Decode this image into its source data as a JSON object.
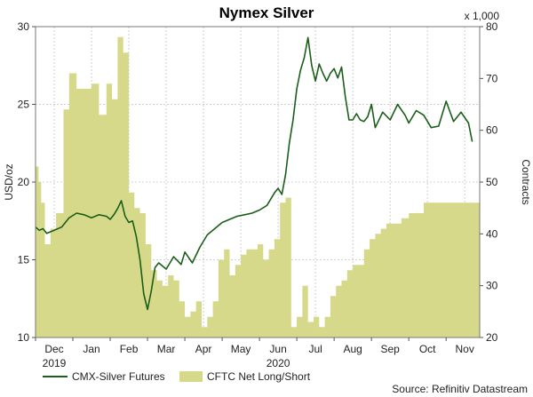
{
  "chart_data": {
    "type": "area+line",
    "title": "Nymex Silver",
    "ylabel_left": "USD/oz",
    "ylabel_right": "Contracts",
    "right_multiplier": "x 1,000",
    "ylim_left": [
      10,
      30
    ],
    "ylim_right": [
      20,
      80
    ],
    "yticks_left": [
      10,
      15,
      20,
      25,
      30
    ],
    "yticks_right": [
      20,
      30,
      40,
      50,
      60,
      70,
      80
    ],
    "xlim_months": [
      0,
      11.9
    ],
    "month_ticks": [
      "Dec",
      "Jan",
      "Feb",
      "Mar",
      "Apr",
      "May",
      "Jun",
      "Jul",
      "Aug",
      "Sep",
      "Oct",
      "Nov"
    ],
    "year_labels": [
      {
        "label": "2019",
        "month_index": 0
      },
      {
        "label": "2020",
        "month_index": 6
      }
    ],
    "series": [
      {
        "name": "CMX-Silver Futures",
        "axis": "left",
        "color": "#1a5e1a",
        "x": [
          0.0,
          0.1,
          0.2,
          0.3,
          0.5,
          0.7,
          0.9,
          1.1,
          1.3,
          1.5,
          1.7,
          1.9,
          2.0,
          2.1,
          2.2,
          2.3,
          2.4,
          2.5,
          2.6,
          2.7,
          2.8,
          2.9,
          3.0,
          3.1,
          3.2,
          3.3,
          3.5,
          3.7,
          3.9,
          4.0,
          4.2,
          4.4,
          4.6,
          4.8,
          5.0,
          5.2,
          5.4,
          5.6,
          5.8,
          6.0,
          6.2,
          6.4,
          6.5,
          6.6,
          6.7,
          6.8,
          6.9,
          7.0,
          7.1,
          7.2,
          7.3,
          7.4,
          7.5,
          7.6,
          7.7,
          7.8,
          7.9,
          8.0,
          8.1,
          8.2,
          8.3,
          8.4,
          8.5,
          8.6,
          8.7,
          8.8,
          8.9,
          9.0,
          9.1,
          9.3,
          9.5,
          9.7,
          9.9,
          10.0,
          10.2,
          10.4,
          10.6,
          10.8,
          11.0,
          11.2,
          11.4,
          11.6,
          11.7
        ],
        "values": [
          17.1,
          16.9,
          17.0,
          16.7,
          16.9,
          17.1,
          17.7,
          18.0,
          17.9,
          17.7,
          17.9,
          17.8,
          17.6,
          17.9,
          18.3,
          18.8,
          17.8,
          17.4,
          17.5,
          16.5,
          15.0,
          12.8,
          11.8,
          13.0,
          14.5,
          14.8,
          14.4,
          15.2,
          14.7,
          15.5,
          14.8,
          15.8,
          16.6,
          17.0,
          17.4,
          17.6,
          17.8,
          17.9,
          18.0,
          18.2,
          18.5,
          19.3,
          19.6,
          19.2,
          20.5,
          22.5,
          24.0,
          26.0,
          27.2,
          28.0,
          29.3,
          27.5,
          26.5,
          27.6,
          27.0,
          26.5,
          27.0,
          27.3,
          26.7,
          27.4,
          25.5,
          24.0,
          24.0,
          24.4,
          24.0,
          23.9,
          24.2,
          25.0,
          23.5,
          24.5,
          24.0,
          25.0,
          24.3,
          23.8,
          24.6,
          24.3,
          23.5,
          23.6,
          25.2,
          23.9,
          24.5,
          23.8,
          22.6
        ]
      },
      {
        "name": "CFTC Net Long/Short",
        "axis": "right",
        "color": "#d6d98a",
        "x": [
          0.0,
          0.08,
          0.15,
          0.25,
          0.4,
          0.55,
          0.75,
          0.9,
          1.1,
          1.3,
          1.5,
          1.7,
          1.9,
          2.05,
          2.2,
          2.35,
          2.5,
          2.65,
          2.8,
          2.95,
          3.1,
          3.25,
          3.4,
          3.55,
          3.7,
          3.85,
          4.0,
          4.15,
          4.3,
          4.45,
          4.6,
          4.75,
          4.9,
          5.05,
          5.2,
          5.35,
          5.5,
          5.65,
          5.8,
          5.95,
          6.1,
          6.25,
          6.4,
          6.55,
          6.7,
          6.85,
          7.0,
          7.15,
          7.3,
          7.45,
          7.6,
          7.75,
          7.9,
          8.05,
          8.2,
          8.35,
          8.5,
          8.65,
          8.8,
          8.95,
          9.1,
          9.25,
          9.4,
          9.6,
          9.8,
          10.0,
          10.2,
          10.4,
          10.6,
          10.8,
          11.0,
          11.2,
          11.4,
          11.6,
          11.8
        ],
        "values": [
          53,
          50,
          46,
          38,
          41,
          44,
          64,
          71,
          68,
          68,
          69,
          63,
          69,
          66,
          78,
          75,
          48,
          45,
          44,
          38,
          33,
          31,
          30,
          32,
          31,
          27,
          24,
          25,
          27,
          22,
          24,
          27,
          35,
          37,
          32,
          34,
          36,
          37,
          37,
          38,
          35,
          37,
          39,
          46,
          47,
          22,
          24,
          30,
          23,
          24,
          22,
          24,
          28,
          30,
          31,
          33,
          34,
          34,
          37,
          39,
          40,
          41,
          42,
          42,
          43,
          44,
          44,
          46,
          46,
          46,
          46,
          46,
          46,
          46,
          46
        ]
      }
    ],
    "grid": true,
    "legend_position": "bottom-left"
  },
  "footer": {
    "source": "Source: Refinitiv Datastream"
  }
}
